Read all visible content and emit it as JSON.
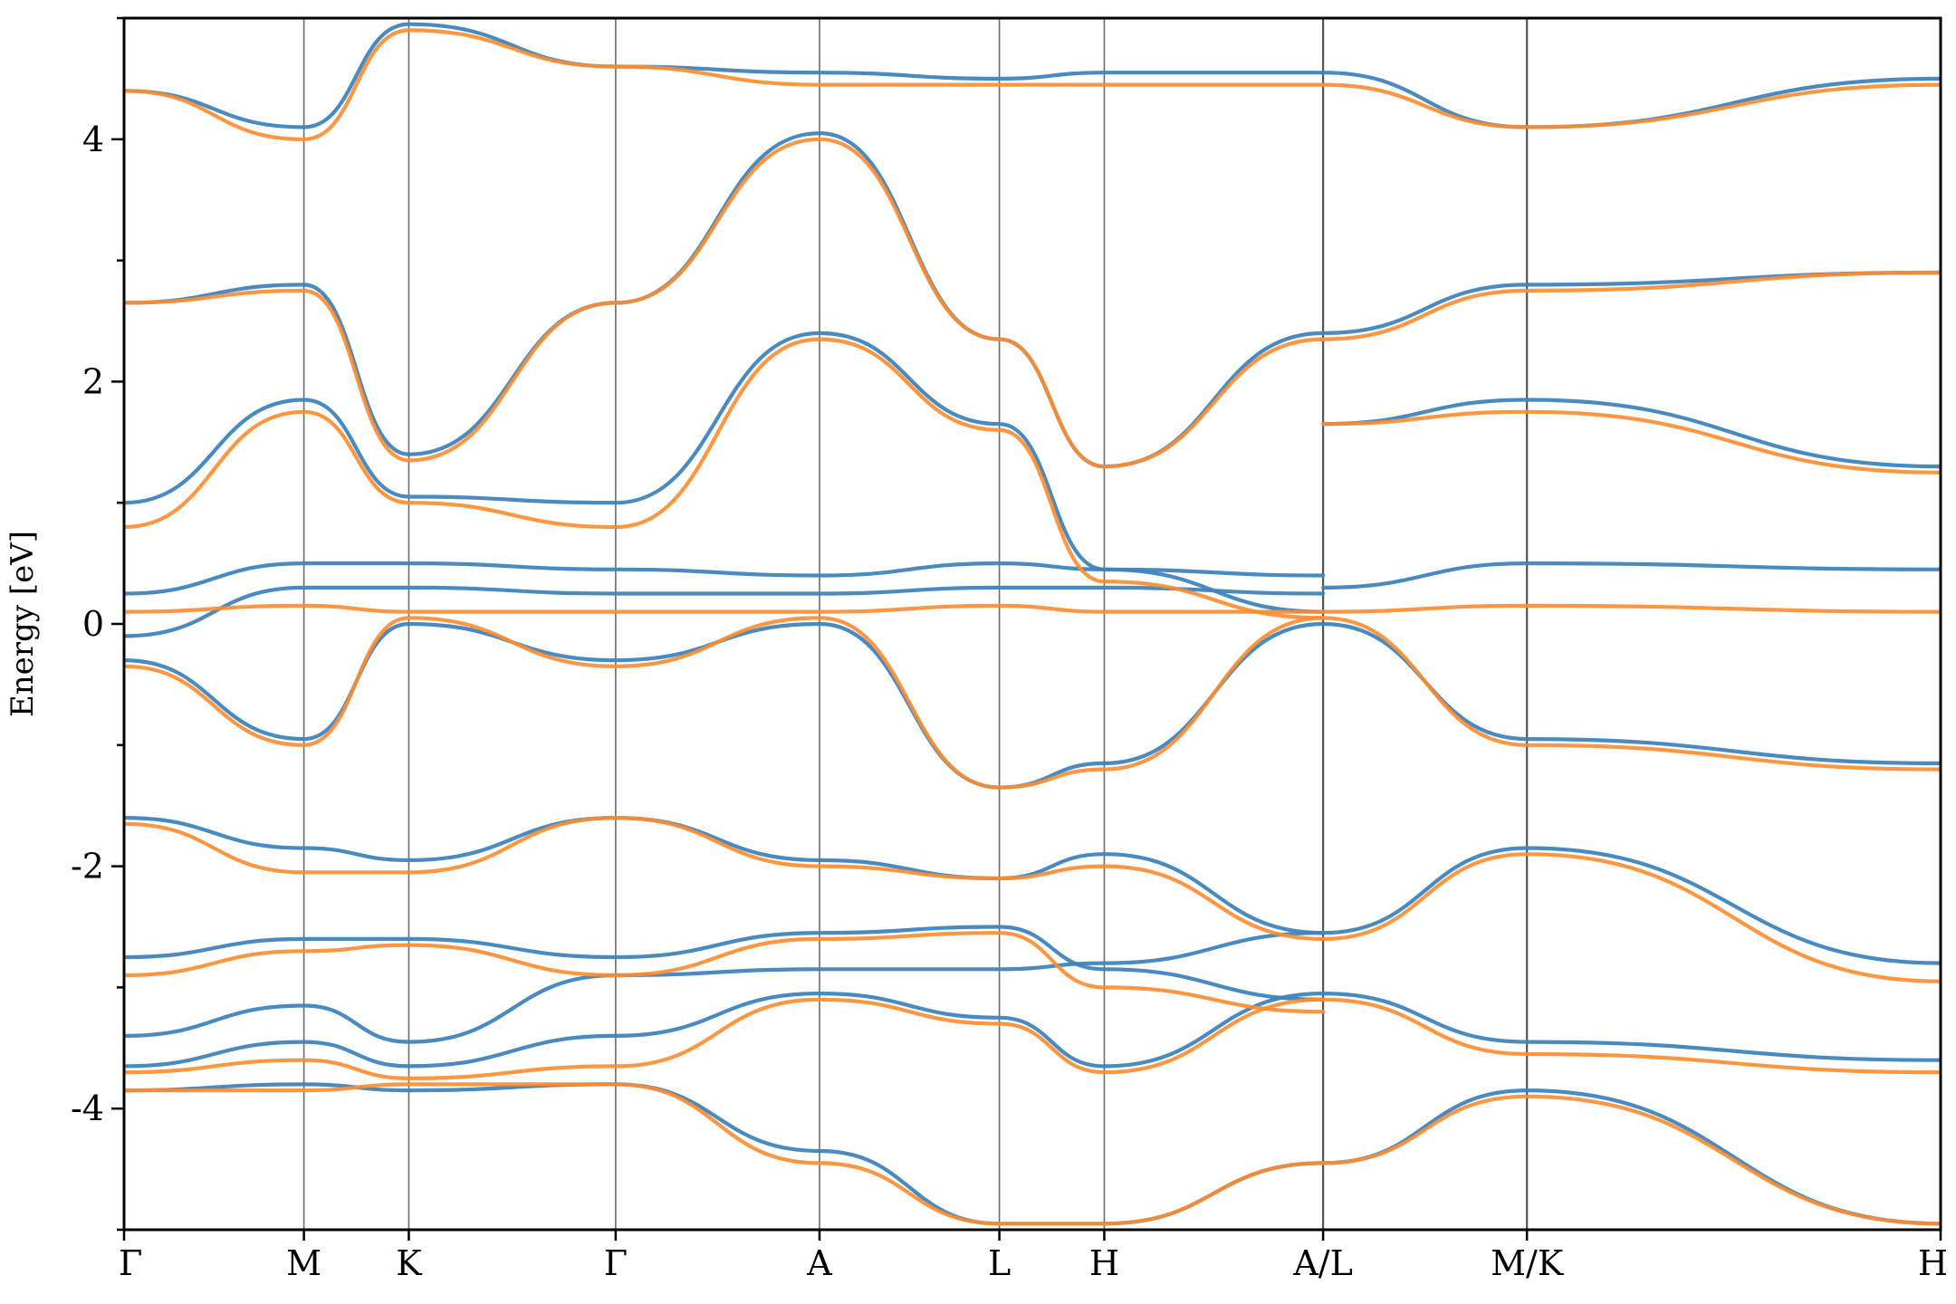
{
  "chart_data": {
    "type": "line",
    "title": "",
    "xlabel": "",
    "ylabel": "Energy [eV]",
    "ylim": [
      -5,
      5
    ],
    "yticks": [
      -4,
      -2,
      0,
      2,
      4
    ],
    "grid": false,
    "legend": "none",
    "kpath_labels": [
      "Γ",
      "M",
      "K",
      "Γ",
      "A",
      "L",
      "H",
      "A/L",
      "M/K",
      "H"
    ],
    "kpath_positions": [
      0,
      0.3,
      0.475,
      0.82,
      1.16,
      1.46,
      1.635,
      2.0,
      2.34,
      3.03
    ],
    "path_breaks": [
      2.0,
      2.34
    ],
    "colors": {
      "spin_up": "#3f84be",
      "spin_down": "#ff8c2e"
    },
    "series": [
      {
        "color": "#3f84be",
        "bands": [
          {
            "x": [
              0,
              0.3,
              0.475,
              0.82,
              1.16,
              1.46,
              1.635,
              2.0
            ],
            "y": [
              -3.85,
              -3.8,
              -3.85,
              -3.8,
              -4.35,
              -4.95,
              -4.95,
              -4.45
            ]
          },
          {
            "x": [
              0,
              0.3,
              0.475,
              0.82,
              1.16,
              1.46,
              1.635,
              2.0
            ],
            "y": [
              -3.65,
              -3.45,
              -3.65,
              -3.4,
              -3.05,
              -3.25,
              -3.65,
              -3.05
            ]
          },
          {
            "x": [
              0,
              0.3,
              0.475,
              0.82,
              1.16,
              1.46,
              1.635,
              2.0
            ],
            "y": [
              -3.4,
              -3.15,
              -3.45,
              -2.9,
              -2.85,
              -2.85,
              -2.8,
              -2.55
            ]
          },
          {
            "x": [
              0,
              0.3,
              0.475,
              0.82,
              1.16,
              1.46,
              1.635,
              2.0
            ],
            "y": [
              -2.75,
              -2.6,
              -2.6,
              -2.75,
              -2.55,
              -2.5,
              -2.85,
              -3.1
            ]
          },
          {
            "x": [
              0,
              0.3,
              0.475,
              0.82,
              1.16,
              1.46,
              1.635,
              2.0
            ],
            "y": [
              -1.6,
              -1.85,
              -1.95,
              -1.6,
              -1.95,
              -2.1,
              -1.9,
              -2.55
            ]
          },
          {
            "x": [
              0,
              0.3,
              0.475,
              0.82,
              1.16,
              1.46,
              1.635,
              2.0
            ],
            "y": [
              -0.3,
              -0.95,
              0.0,
              -0.3,
              0.0,
              -1.35,
              -1.15,
              0.0
            ]
          },
          {
            "x": [
              0,
              0.3,
              0.475,
              0.82,
              1.16,
              1.46,
              1.635,
              2.0
            ],
            "y": [
              -0.1,
              0.3,
              0.3,
              0.25,
              0.25,
              0.3,
              0.3,
              0.25
            ]
          },
          {
            "x": [
              0,
              0.3,
              0.475,
              0.82,
              1.16,
              1.46,
              1.635,
              2.0
            ],
            "y": [
              0.25,
              0.5,
              0.5,
              0.45,
              0.4,
              0.5,
              0.45,
              0.4
            ]
          },
          {
            "x": [
              0,
              0.3,
              0.475,
              0.82,
              1.16,
              1.46,
              1.635,
              2.0
            ],
            "y": [
              1.0,
              1.85,
              1.05,
              1.0,
              2.4,
              1.65,
              0.45,
              0.1
            ]
          },
          {
            "x": [
              0,
              0.3,
              0.475,
              0.82,
              1.16,
              1.46,
              1.635,
              2.0
            ],
            "y": [
              2.65,
              2.8,
              1.4,
              2.65,
              4.05,
              2.35,
              1.3,
              2.4
            ]
          },
          {
            "x": [
              0,
              0.3,
              0.475,
              0.82,
              1.16,
              1.46,
              1.635,
              2.0
            ],
            "y": [
              4.4,
              4.1,
              4.95,
              4.6,
              4.55,
              4.5,
              4.55,
              4.55
            ]
          },
          {
            "x": [
              2.0,
              2.34,
              3.03
            ],
            "y": [
              -4.45,
              -3.85,
              -4.95
            ]
          },
          {
            "x": [
              2.0,
              2.34,
              3.03
            ],
            "y": [
              -3.05,
              -3.45,
              -3.6
            ]
          },
          {
            "x": [
              2.0,
              2.34,
              3.03
            ],
            "y": [
              -2.55,
              -1.85,
              -2.8
            ]
          },
          {
            "x": [
              2.0,
              2.34,
              3.03
            ],
            "y": [
              0.0,
              -0.95,
              -1.15
            ]
          },
          {
            "x": [
              2.0,
              2.34,
              3.03
            ],
            "y": [
              0.3,
              0.5,
              0.45
            ]
          },
          {
            "x": [
              2.0,
              2.34,
              3.03
            ],
            "y": [
              1.65,
              1.85,
              1.3
            ]
          },
          {
            "x": [
              2.0,
              2.34,
              3.03
            ],
            "y": [
              2.4,
              2.8,
              2.9
            ]
          },
          {
            "x": [
              2.0,
              2.34,
              3.03
            ],
            "y": [
              4.55,
              4.1,
              4.5
            ]
          }
        ]
      },
      {
        "color": "#ff8c2e",
        "bands": [
          {
            "x": [
              0,
              0.3,
              0.475,
              0.82,
              1.16,
              1.46,
              1.635,
              2.0
            ],
            "y": [
              -3.85,
              -3.85,
              -3.8,
              -3.8,
              -4.45,
              -4.95,
              -4.95,
              -4.45
            ]
          },
          {
            "x": [
              0,
              0.3,
              0.475,
              0.82,
              1.16,
              1.46,
              1.635,
              2.0
            ],
            "y": [
              -3.7,
              -3.6,
              -3.75,
              -3.65,
              -3.1,
              -3.3,
              -3.7,
              -3.1
            ]
          },
          {
            "x": [
              0,
              0.3,
              0.475,
              0.82,
              1.16,
              1.46,
              1.635,
              2.0
            ],
            "y": [
              -2.9,
              -2.7,
              -2.65,
              -2.9,
              -2.6,
              -2.55,
              -3.0,
              -3.2
            ]
          },
          {
            "x": [
              0,
              0.3,
              0.475,
              0.82,
              1.16,
              1.46,
              1.635,
              2.0
            ],
            "y": [
              -1.65,
              -2.05,
              -2.05,
              -1.6,
              -2.0,
              -2.1,
              -2.0,
              -2.6
            ]
          },
          {
            "x": [
              0,
              0.3,
              0.475,
              0.82,
              1.16,
              1.46,
              1.635,
              2.0
            ],
            "y": [
              -0.35,
              -1.0,
              0.05,
              -0.35,
              0.05,
              -1.35,
              -1.2,
              0.05
            ]
          },
          {
            "x": [
              0,
              0.3,
              0.475,
              0.82,
              1.16,
              1.46,
              1.635,
              2.0
            ],
            "y": [
              0.1,
              0.15,
              0.1,
              0.1,
              0.1,
              0.15,
              0.1,
              0.1
            ]
          },
          {
            "x": [
              0,
              0.3,
              0.475,
              0.82,
              1.16,
              1.46,
              1.635,
              2.0
            ],
            "y": [
              0.8,
              1.75,
              1.0,
              0.8,
              2.35,
              1.6,
              0.35,
              0.05
            ]
          },
          {
            "x": [
              0,
              0.3,
              0.475,
              0.82,
              1.16,
              1.46,
              1.635,
              2.0
            ],
            "y": [
              2.65,
              2.75,
              1.35,
              2.65,
              4.0,
              2.35,
              1.3,
              2.35
            ]
          },
          {
            "x": [
              0,
              0.3,
              0.475,
              0.82,
              1.16,
              1.46,
              1.635,
              2.0
            ],
            "y": [
              4.4,
              4.0,
              4.9,
              4.6,
              4.45,
              4.45,
              4.45,
              4.45
            ]
          },
          {
            "x": [
              2.0,
              2.34,
              3.03
            ],
            "y": [
              -4.45,
              -3.9,
              -4.95
            ]
          },
          {
            "x": [
              2.0,
              2.34,
              3.03
            ],
            "y": [
              -3.1,
              -3.55,
              -3.7
            ]
          },
          {
            "x": [
              2.0,
              2.34,
              3.03
            ],
            "y": [
              -2.6,
              -1.9,
              -2.95
            ]
          },
          {
            "x": [
              2.0,
              2.34,
              3.03
            ],
            "y": [
              0.05,
              -1.0,
              -1.2
            ]
          },
          {
            "x": [
              2.0,
              2.34,
              3.03
            ],
            "y": [
              0.1,
              0.15,
              0.1
            ]
          },
          {
            "x": [
              2.0,
              2.34,
              3.03
            ],
            "y": [
              1.65,
              1.75,
              1.25
            ]
          },
          {
            "x": [
              2.0,
              2.34,
              3.03
            ],
            "y": [
              2.35,
              2.75,
              2.9
            ]
          },
          {
            "x": [
              2.0,
              2.34,
              3.03
            ],
            "y": [
              4.45,
              4.1,
              4.45
            ]
          }
        ]
      }
    ]
  }
}
